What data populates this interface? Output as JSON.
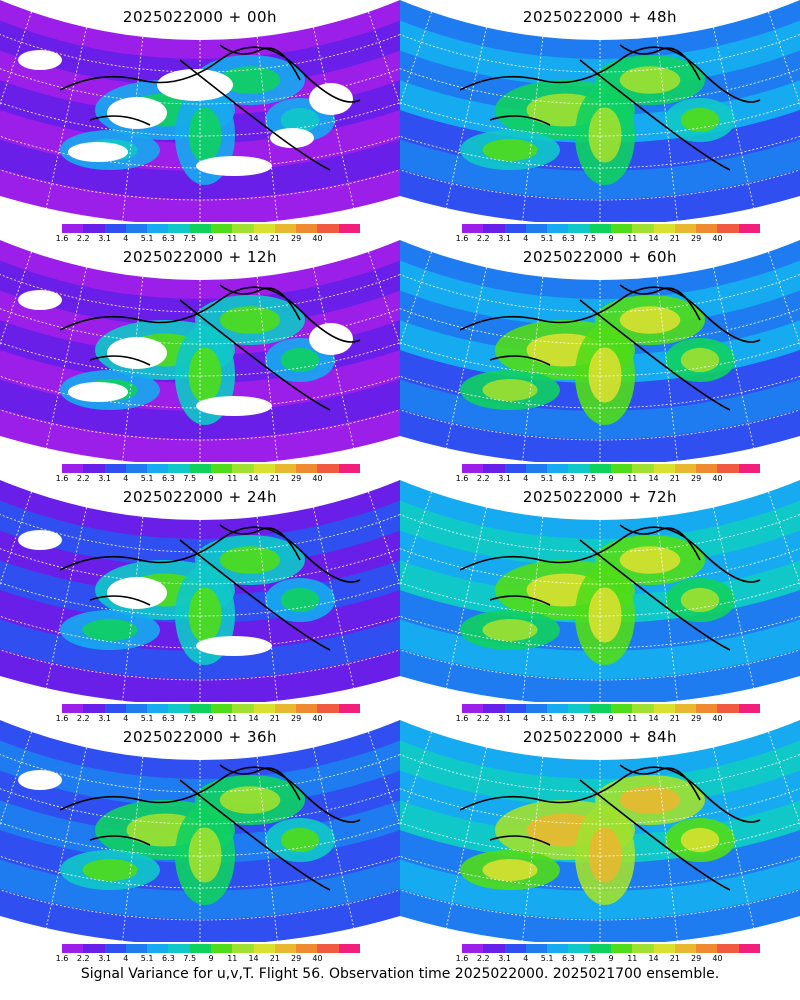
{
  "panels": [
    {
      "title": "2025022000 + 00h",
      "lead": 0
    },
    {
      "title": "2025022000 + 48h",
      "lead": 48
    },
    {
      "title": "2025022000 + 12h",
      "lead": 12
    },
    {
      "title": "2025022000 + 60h",
      "lead": 60
    },
    {
      "title": "2025022000 + 24h",
      "lead": 24
    },
    {
      "title": "2025022000 + 72h",
      "lead": 72
    },
    {
      "title": "2025022000 + 36h",
      "lead": 36
    },
    {
      "title": "2025022000 + 84h",
      "lead": 84
    }
  ],
  "colorbar": {
    "labels": [
      "1.6",
      "2.2",
      "3.1",
      "4",
      "5.1",
      "6.3",
      "7.5",
      "9",
      "11",
      "14",
      "21",
      "29",
      "40"
    ],
    "colors": [
      "#9b1fe8",
      "#6a1fe8",
      "#2f4ff0",
      "#1e7cf0",
      "#16aaf0",
      "#10c8c8",
      "#10d060",
      "#50dc18",
      "#a0e030",
      "#d8e030",
      "#e8b830",
      "#f08a30",
      "#f05a40",
      "#f0207a"
    ]
  },
  "caption": "Signal Variance for u,v,T. Flight 56. Observation time 2025022000. 2025021700 ensemble."
}
